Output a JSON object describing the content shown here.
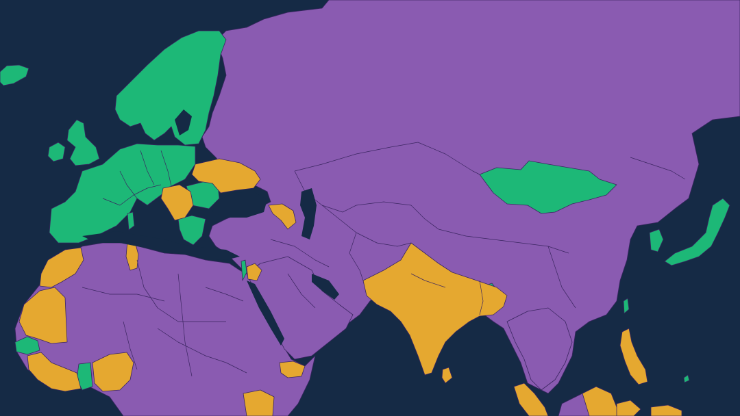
{
  "map": {
    "colors": {
      "ocean": "#152a45",
      "free": "#1db877",
      "partly_free": "#e5a830",
      "not_free": "#8a5bb1",
      "border": "#3a2560"
    }
  }
}
